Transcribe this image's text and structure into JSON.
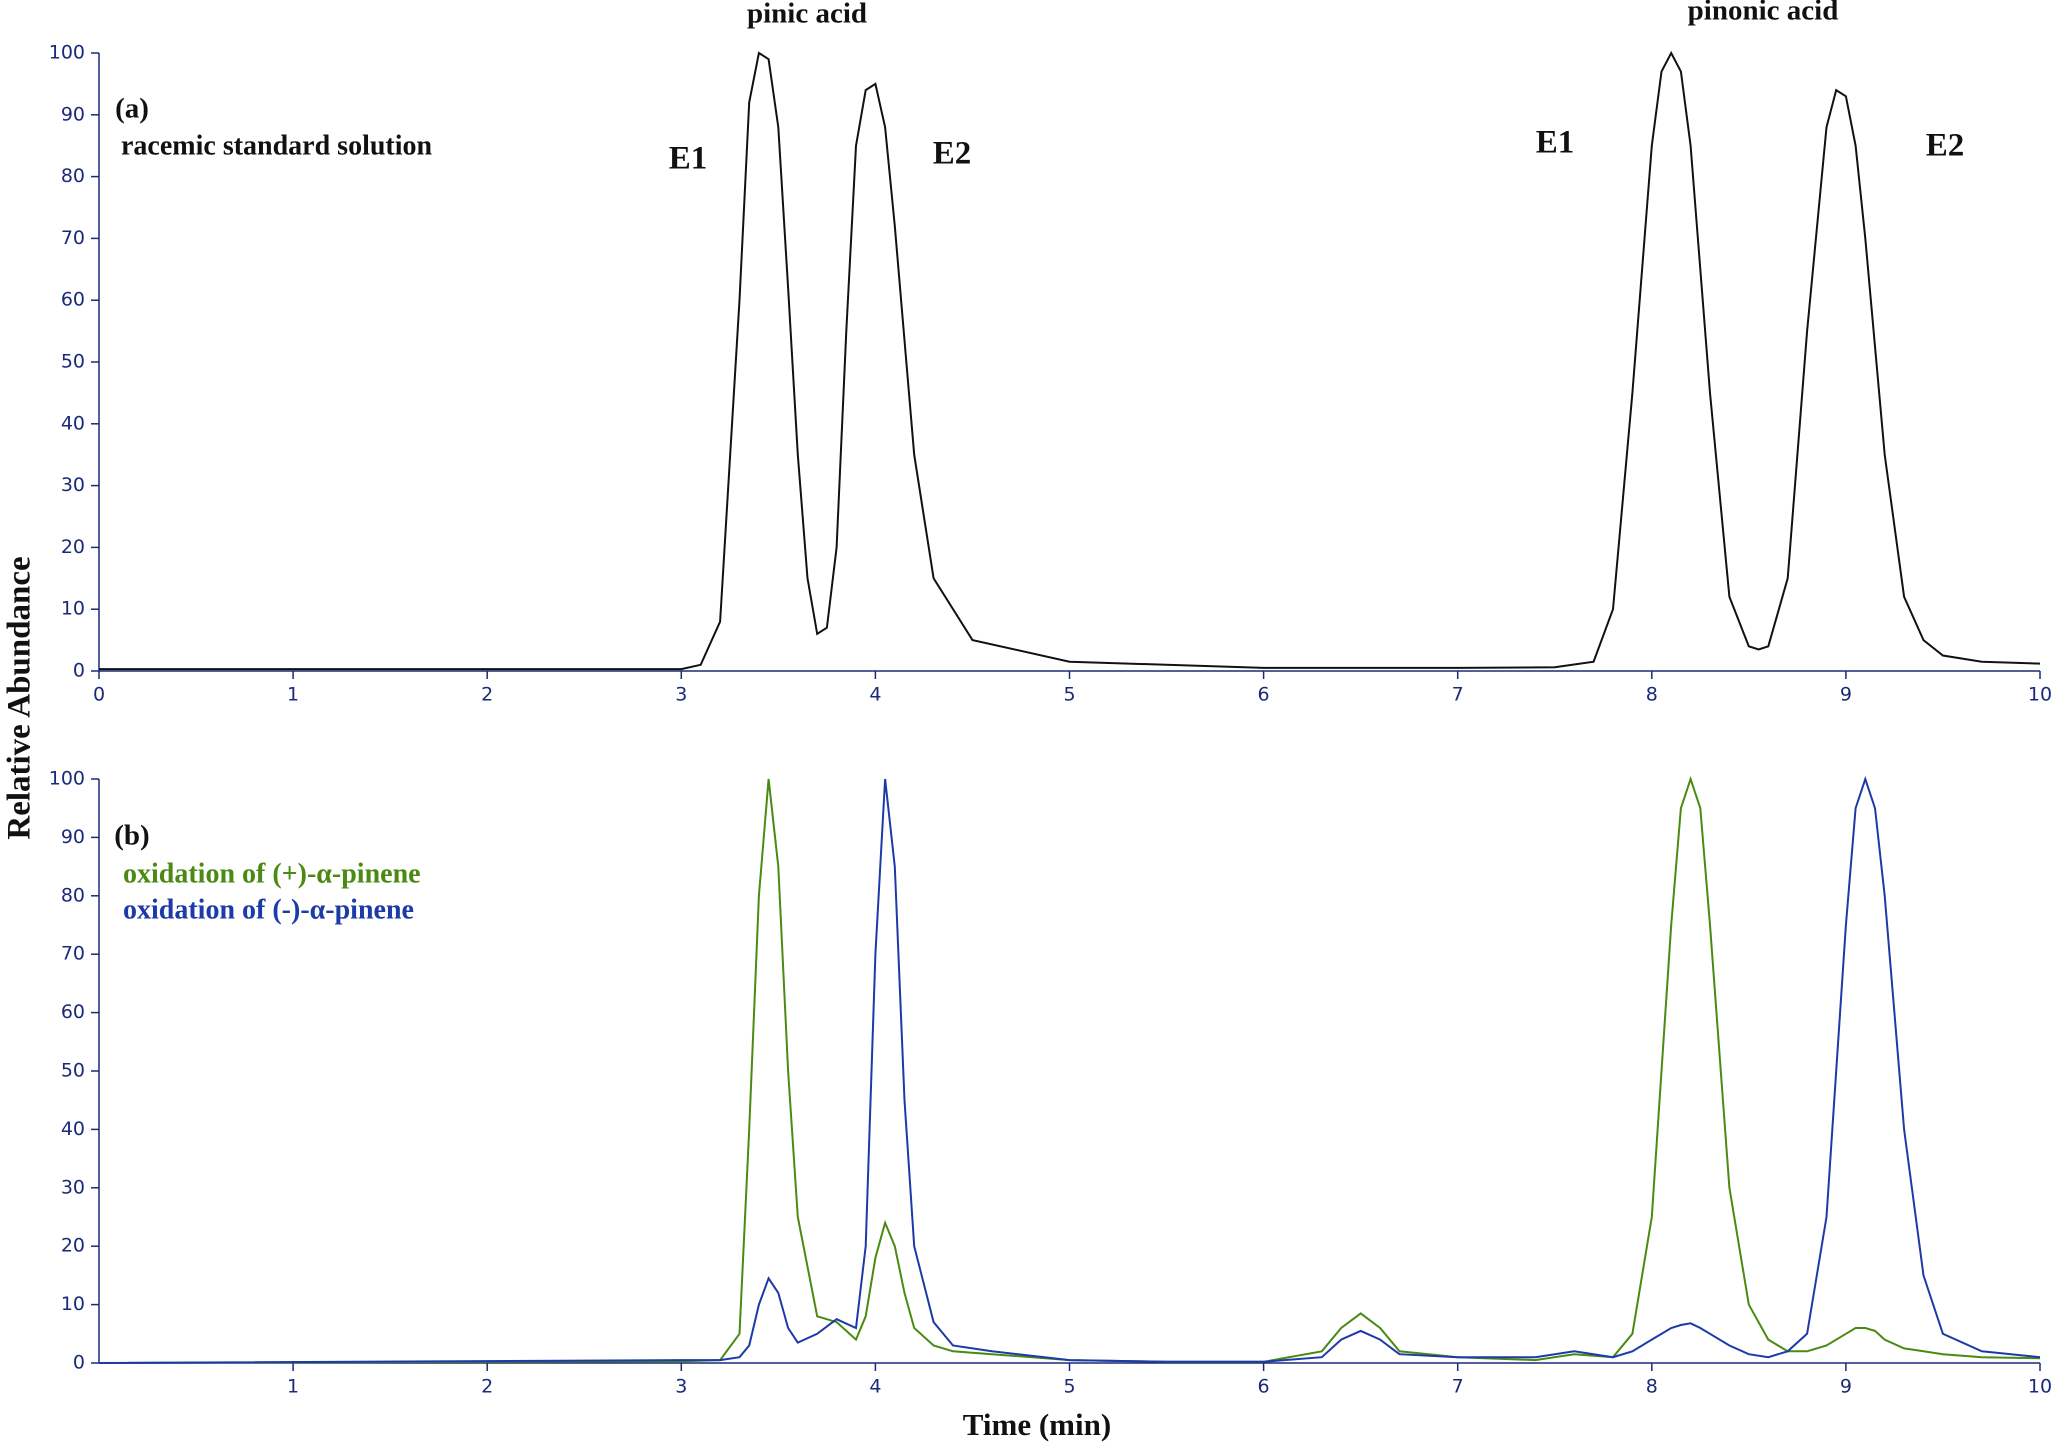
{
  "chart_data": [
    {
      "type": "line",
      "label": "(a)",
      "y_label": "Relative Abundance",
      "annotations": [
        "pinic acid",
        "pinonic acid",
        "E1",
        "E2",
        "E1",
        "E2"
      ],
      "x": [
        0,
        3,
        3.1,
        3.2,
        3.3,
        3.35,
        3.4,
        3.45,
        3.5,
        3.55,
        3.6,
        3.65,
        3.7,
        3.75,
        3.8,
        3.85,
        3.9,
        3.95,
        4.0,
        4.05,
        4.1,
        4.2,
        4.3,
        4.5,
        5,
        6,
        7,
        7.5,
        7.7,
        7.8,
        7.9,
        8.0,
        8.05,
        8.1,
        8.15,
        8.2,
        8.3,
        8.4,
        8.5,
        8.55,
        8.6,
        8.7,
        8.8,
        8.9,
        8.95,
        9.0,
        9.05,
        9.1,
        9.2,
        9.3,
        9.4,
        9.5,
        9.7,
        10
      ],
      "series": [
        {
          "name": "racemic standard solution",
          "color": "#111111",
          "values": [
            0.3,
            0.3,
            1,
            8,
            60,
            92,
            100,
            99,
            88,
            62,
            35,
            15,
            6,
            7,
            20,
            55,
            85,
            94,
            95,
            88,
            72,
            35,
            15,
            5,
            1.5,
            0.5,
            0.5,
            0.6,
            1.5,
            10,
            45,
            85,
            97,
            100,
            97,
            85,
            45,
            12,
            4,
            3.5,
            4,
            15,
            55,
            88,
            94,
            93,
            85,
            70,
            35,
            12,
            5,
            2.5,
            1.5,
            1.2
          ]
        }
      ],
      "xlim": [
        0,
        10
      ],
      "ylim": [
        0,
        100
      ],
      "xticks": [
        0,
        1,
        2,
        3,
        4,
        5,
        6,
        7,
        8,
        9,
        10
      ],
      "yticks": [
        0,
        10,
        20,
        30,
        40,
        50,
        60,
        70,
        80,
        90,
        100
      ]
    },
    {
      "type": "line",
      "label": "(b)",
      "x_label": "Time (min)",
      "x": [
        0,
        3,
        3.2,
        3.3,
        3.35,
        3.4,
        3.45,
        3.5,
        3.55,
        3.6,
        3.7,
        3.8,
        3.9,
        3.95,
        4.0,
        4.05,
        4.1,
        4.15,
        4.2,
        4.3,
        4.4,
        4.6,
        5,
        5.5,
        6,
        6.3,
        6.4,
        6.5,
        6.6,
        6.7,
        7,
        7.4,
        7.6,
        7.8,
        7.9,
        8.0,
        8.1,
        8.15,
        8.2,
        8.25,
        8.3,
        8.4,
        8.5,
        8.6,
        8.7,
        8.8,
        8.9,
        9.0,
        9.05,
        9.1,
        9.15,
        9.2,
        9.3,
        9.4,
        9.5,
        9.7,
        10
      ],
      "series": [
        {
          "name": "oxidation of (+)-α-pinene",
          "color": "#4a8a12",
          "values": [
            0,
            0.3,
            0.5,
            5,
            40,
            80,
            100,
            85,
            50,
            25,
            8,
            7,
            4,
            8,
            18,
            24,
            20,
            12,
            6,
            3,
            2,
            1.5,
            0.5,
            0.2,
            0.2,
            2,
            6,
            8.5,
            6,
            2,
            1,
            0.5,
            1.5,
            1,
            5,
            25,
            75,
            95,
            100,
            95,
            75,
            30,
            10,
            4,
            2,
            2,
            3,
            5,
            6,
            6,
            5.5,
            4,
            2.5,
            2,
            1.5,
            1,
            0.8
          ]
        },
        {
          "name": "oxidation of (-)-α-pinene",
          "color": "#1c3aa8",
          "values": [
            0,
            0.5,
            0.5,
            1,
            3,
            10,
            14.5,
            12,
            6,
            3.5,
            5,
            7.5,
            6,
            20,
            70,
            100,
            85,
            45,
            20,
            7,
            3,
            2,
            0.5,
            0.2,
            0.2,
            1,
            4,
            5.5,
            4,
            1.5,
            1,
            1,
            2,
            1,
            2,
            4,
            6,
            6.5,
            6.8,
            6,
            5,
            3,
            1.5,
            1,
            2,
            5,
            25,
            75,
            95,
            100,
            95,
            80,
            40,
            15,
            5,
            2,
            1
          ]
        }
      ],
      "xlim": [
        0,
        10
      ],
      "ylim": [
        0,
        100
      ],
      "xticks": [
        1,
        2,
        3,
        4,
        5,
        6,
        7,
        8,
        9,
        10
      ],
      "yticks": [
        0,
        10,
        20,
        30,
        40,
        50,
        60,
        70,
        80,
        90,
        100
      ]
    }
  ]
}
